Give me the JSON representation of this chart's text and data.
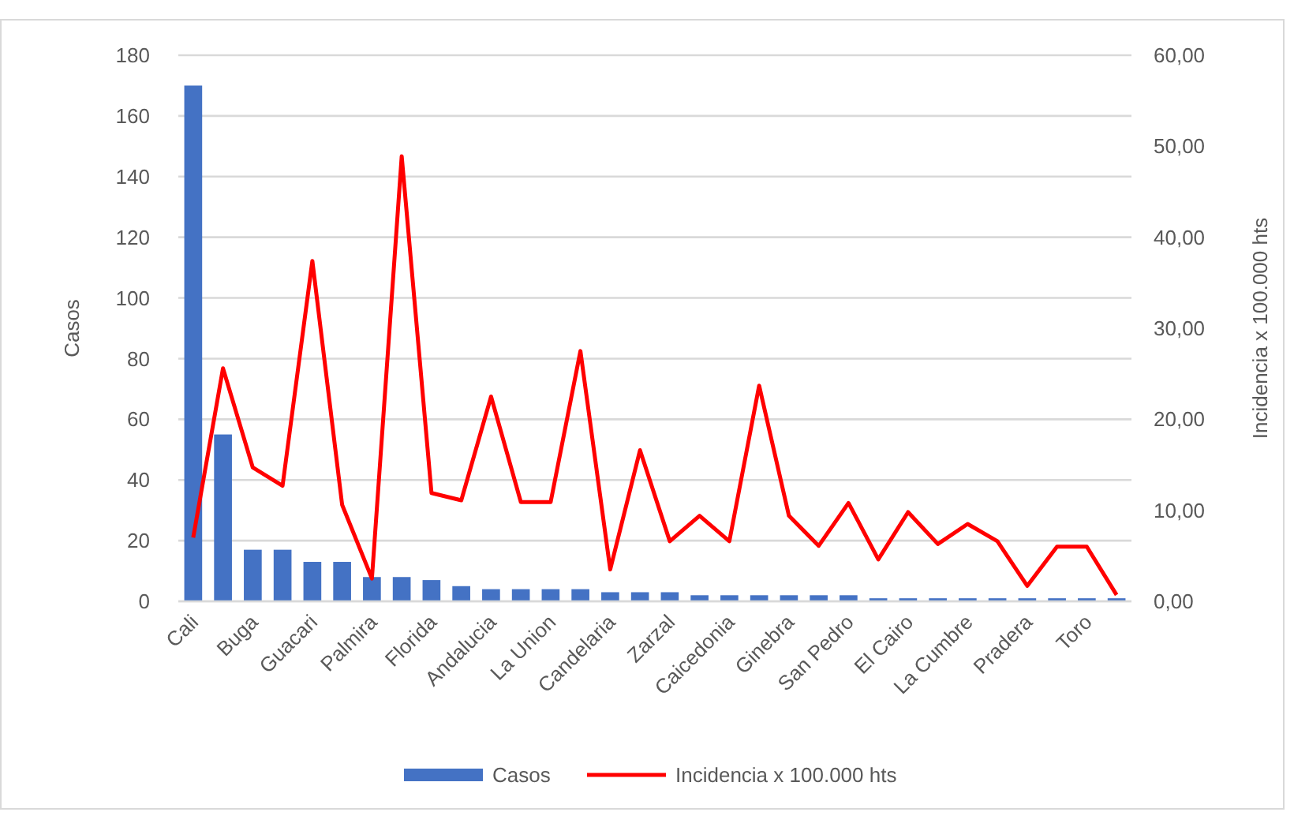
{
  "chart_data": {
    "type": "bar",
    "categories": [
      "Cali",
      null,
      "Buga",
      null,
      "Guacari",
      null,
      "Palmira",
      null,
      "Florida",
      null,
      "Andalucia",
      null,
      "La Union",
      null,
      "Candelaria",
      null,
      "Zarzal",
      null,
      "Caicedonia",
      null,
      "Ginebra",
      null,
      "San Pedro",
      null,
      "El Cairo",
      null,
      "La Cumbre",
      null,
      "Pradera",
      null,
      "Toro",
      null
    ],
    "series": [
      {
        "name": "Casos",
        "color": "#4472c4",
        "values": [
          170,
          55,
          17,
          17,
          13,
          13,
          8,
          8,
          7,
          5,
          4,
          4,
          4,
          4,
          3,
          3,
          3,
          2,
          2,
          2,
          2,
          2,
          2,
          1,
          1,
          1,
          1,
          1,
          1,
          1,
          1,
          1
        ]
      },
      {
        "name": "Incidencia x 100.000 hts",
        "type": "line",
        "axis": "y2",
        "color": "#ff0000",
        "values": [
          7.0,
          25.6,
          14.7,
          12.7,
          37.4,
          10.6,
          2.5,
          48.9,
          11.9,
          11.1,
          22.5,
          10.9,
          10.9,
          27.5,
          3.5,
          16.6,
          6.6,
          9.4,
          6.6,
          23.7,
          9.4,
          6.1,
          10.8,
          4.6,
          9.8,
          6.3,
          8.5,
          6.6,
          1.7,
          6.0,
          6.0,
          0.7
        ]
      }
    ],
    "ylabel": "Casos",
    "y2label": "Incidencia x 100.000 hts",
    "ylim": [
      0,
      180
    ],
    "yticks": [
      0,
      20,
      40,
      60,
      80,
      100,
      120,
      140,
      160,
      180
    ],
    "y2lim": [
      0,
      60
    ],
    "y2ticks": [
      {
        "value": 0,
        "label": "0,00"
      },
      {
        "value": 10,
        "label": "10,00"
      },
      {
        "value": 20,
        "label": "20,00"
      },
      {
        "value": 30,
        "label": "30,00"
      },
      {
        "value": 40,
        "label": "40,00"
      },
      {
        "value": 50,
        "label": "50,00"
      },
      {
        "value": 60,
        "label": "60,00"
      }
    ],
    "grid": "y",
    "legend": "bottom",
    "marker": "none",
    "line_style": "solid"
  }
}
